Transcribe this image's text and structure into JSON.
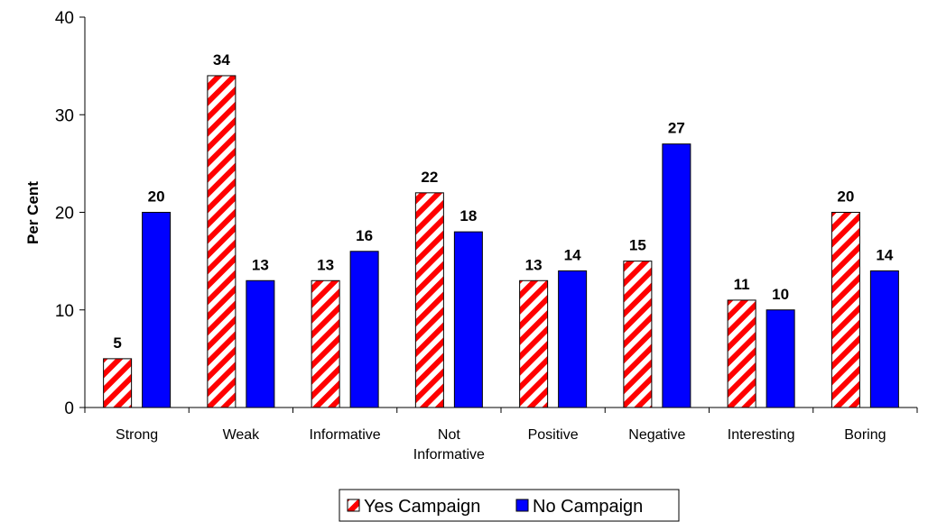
{
  "chart_data": {
    "type": "bar",
    "categories": [
      [
        "Strong"
      ],
      [
        "Weak"
      ],
      [
        "Informative"
      ],
      [
        "Not",
        "Informative"
      ],
      [
        "Positive"
      ],
      [
        "Negative"
      ],
      [
        "Interesting"
      ],
      [
        "Boring"
      ]
    ],
    "series": [
      {
        "name": "Yes Campaign",
        "values": [
          5,
          34,
          13,
          22,
          13,
          15,
          11,
          20
        ],
        "fill": "red-white-diagonal-hatch",
        "color": "#ff0000"
      },
      {
        "name": "No Campaign",
        "values": [
          20,
          13,
          16,
          18,
          14,
          27,
          10,
          14
        ],
        "fill": "solid",
        "color": "#0000ff"
      }
    ],
    "ylabel": "Per Cent",
    "ylim": [
      0,
      40
    ],
    "yticks": [
      0,
      10,
      20,
      30,
      40
    ],
    "grid": false,
    "legend_position": "bottom-center",
    "data_labels": true
  }
}
